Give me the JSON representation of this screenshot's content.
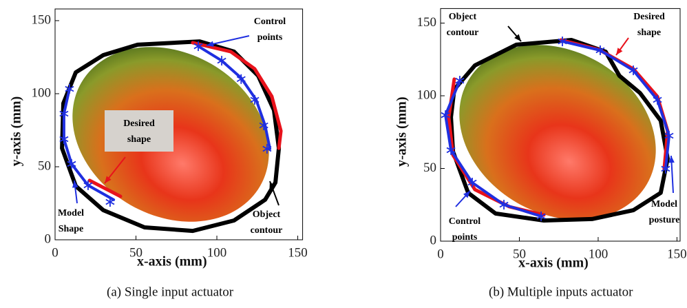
{
  "chart_data": [
    {
      "type": "line",
      "xlabel": "x-axis (mm)",
      "ylabel": "y-axis (mm)",
      "caption": "(a) Single input actuator",
      "xlim": [
        0,
        153
      ],
      "ylim": [
        0,
        158
      ],
      "xticks": [
        0,
        50,
        100,
        150
      ],
      "yticks": [
        0,
        50,
        100,
        150
      ],
      "series": [
        {
          "color": "#000000",
          "linewidth": 6,
          "x": [
            5.1,
            12.8,
            29.8,
            51,
            89.4,
            110.6,
            125.5,
            135.3,
            138.3,
            136.2,
            129.8,
            110.6,
            85.1,
            55.3,
            29.8,
            12.8,
            4.3,
            5.1
          ],
          "values": [
            93.4,
            114.6,
            126.4,
            133.5,
            135.8,
            128.8,
            112.3,
            88.7,
            62.7,
            39.2,
            27.4,
            13.2,
            6.1,
            8.5,
            20.3,
            36.8,
            62.7,
            93.4
          ]
        },
        {
          "color": "#e8121b",
          "linewidth": 5,
          "x": [
            85.1,
            108.5,
            123.4,
            134,
            139.6,
            138.3,
            null,
            21.3,
            29.8,
            40.4
          ],
          "values": [
            134.9,
            128.8,
            117,
            98.1,
            74.5,
            62.7,
            null,
            40.6,
            35.8,
            29.7
          ]
        },
        {
          "color": "#1f2fe0",
          "linewidth": 4,
          "x": [
            88.5,
            103,
            115,
            124.3,
            129.8,
            132.8,
            null,
            8.9,
            5.5,
            5.5,
            10.2,
            20.4,
            36.2
          ],
          "values": [
            132.5,
            122.6,
            110.8,
            95.8,
            78.3,
            62.3,
            null,
            103.3,
            86.3,
            68.9,
            51.9,
            37.3,
            27.4
          ]
        },
        {
          "color": "#1f2fe0",
          "marker": "asterisk",
          "x": [
            88.5,
            103,
            115,
            123.4,
            129,
            131,
            8.9,
            5.5,
            5.5,
            10.2,
            20.4,
            34
          ],
          "values": [
            132.5,
            122.6,
            110,
            95.8,
            78.3,
            62.3,
            103.3,
            86.3,
            68.9,
            51.9,
            37.3,
            25.9
          ]
        }
      ],
      "annotations": [
        [
          "Control",
          "points"
        ],
        [
          "Desired",
          "shape"
        ],
        [
          "Model",
          "Shape"
        ],
        [
          "Object",
          "contour"
        ]
      ]
    },
    {
      "type": "line",
      "xlabel": "x-axis (mm)",
      "ylabel": "y-axis (mm)",
      "caption": "(b) Multiple inputs actuator",
      "xlim": [
        0,
        152
      ],
      "ylim": [
        0,
        160
      ],
      "xticks": [
        0,
        50,
        100,
        150
      ],
      "yticks": [
        0,
        50,
        100,
        150
      ],
      "series": [
        {
          "color": "#000000",
          "linewidth": 6,
          "x": [
            8.7,
            21.8,
            48,
            83,
            104.8,
            113.5,
            126.6,
            139.7,
            144.1,
            139.7,
            122.3,
            96.1,
            65.5,
            34.9,
            17.5,
            7.9,
            6.6,
            8.7
          ],
          "values": [
            104.3,
            120.9,
            135.1,
            138.4,
            130.3,
            113.7,
            101.9,
            82.9,
            56.9,
            33.2,
            21.3,
            15.2,
            14.2,
            19,
            33.2,
            61.6,
            85.3,
            104.3
          ]
        },
        {
          "color": "#e8121b",
          "linewidth": 5,
          "x": [
            76.4,
            100.4,
            122.3,
            137.6,
            144.1,
            141.9,
            null,
            8.7,
            5.2,
            7.9,
            21.8,
            43.7,
            65.5
          ],
          "values": [
            138.4,
            131.8,
            118.5,
            99.5,
            75.8,
            49.8,
            null,
            111.4,
            85.3,
            59.2,
            35.5,
            23.7,
            18
          ]
        },
        {
          "color": "#1f2fe0",
          "linewidth": 4,
          "x": [
            77.3,
            101.3,
            122.3,
            137.6,
            145,
            142.8,
            null,
            12.2,
            3.1,
            6.6,
            20.1,
            40.2,
            63.8
          ],
          "values": [
            137.4,
            131.3,
            117.5,
            97.2,
            72.5,
            49.8,
            null,
            110.4,
            86.7,
            62.6,
            40.3,
            25.1,
            17.1
          ]
        },
        {
          "color": "#1f2fe0",
          "marker": "asterisk",
          "x": [
            77.3,
            101.3,
            122.3,
            137.6,
            145,
            142.8,
            12.2,
            3.1,
            6.6,
            20.1,
            40.2,
            63.8
          ],
          "values": [
            137.4,
            131.3,
            117.5,
            97.2,
            72.5,
            49.8,
            110.4,
            86.7,
            62.6,
            40.3,
            25.1,
            17.1
          ]
        }
      ],
      "annotations": [
        [
          "Object",
          "contour"
        ],
        [
          "Desired",
          "shape"
        ],
        [
          "Control",
          "points"
        ],
        [
          "Model",
          "posture"
        ]
      ]
    }
  ]
}
